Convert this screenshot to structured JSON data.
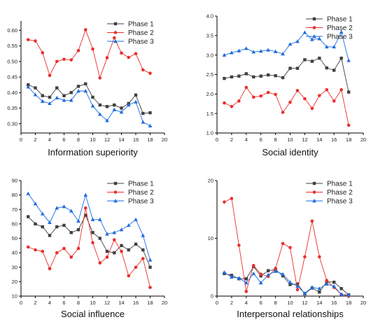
{
  "colors": {
    "phase1": "#404040",
    "phase2": "#e8302c",
    "phase3": "#1e6be0"
  },
  "chart_data": [
    {
      "type": "line",
      "title": "Information superiority",
      "x": [
        1,
        2,
        3,
        4,
        5,
        6,
        7,
        8,
        9,
        10,
        11,
        12,
        13,
        14,
        15,
        16,
        17,
        18
      ],
      "xlim": [
        0,
        20
      ],
      "xticks": [
        0,
        2,
        4,
        6,
        8,
        10,
        12,
        14,
        16,
        18,
        20
      ],
      "ylim": [
        0.27,
        0.63
      ],
      "yticks": [
        0.3,
        0.35,
        0.4,
        0.45,
        0.5,
        0.55,
        0.6
      ],
      "ytick_labels": [
        "0.30",
        "0.35",
        "0.40",
        "0.45",
        "0.50",
        "0.55",
        "0.60"
      ],
      "legend": "top-right",
      "series": [
        {
          "name": "Phase 1",
          "values": [
            0.425,
            0.415,
            0.39,
            0.385,
            0.415,
            0.39,
            0.4,
            0.42,
            0.428,
            0.385,
            0.36,
            0.355,
            0.36,
            0.35,
            0.365,
            0.392,
            0.333,
            0.335
          ]
        },
        {
          "name": "Phase 2",
          "values": [
            0.57,
            0.566,
            0.528,
            0.455,
            0.5,
            0.507,
            0.505,
            0.535,
            0.602,
            0.54,
            0.447,
            0.512,
            0.576,
            0.527,
            0.513,
            0.525,
            0.473,
            0.462
          ]
        },
        {
          "name": "Phase 3",
          "values": [
            0.418,
            0.393,
            0.372,
            0.365,
            0.383,
            0.375,
            0.375,
            0.405,
            0.405,
            0.357,
            0.33,
            0.31,
            0.345,
            0.337,
            0.36,
            0.37,
            0.305,
            0.293
          ]
        }
      ]
    },
    {
      "type": "line",
      "title": "Social identity",
      "x": [
        1,
        2,
        3,
        4,
        5,
        6,
        7,
        8,
        9,
        10,
        11,
        12,
        13,
        14,
        15,
        16,
        17,
        18
      ],
      "xlim": [
        0,
        20
      ],
      "xticks": [
        0,
        2,
        4,
        6,
        8,
        10,
        12,
        14,
        16,
        18,
        20
      ],
      "ylim": [
        1.0,
        4.0
      ],
      "yticks": [
        1.0,
        1.5,
        2.0,
        2.5,
        3.0,
        3.5,
        4.0
      ],
      "ytick_labels": [
        "1.0",
        "1.5",
        "2.0",
        "2.5",
        "3.0",
        "3.5",
        "4.0"
      ],
      "legend": "top-right",
      "series": [
        {
          "name": "Phase 1",
          "values": [
            2.4,
            2.44,
            2.46,
            2.52,
            2.44,
            2.46,
            2.49,
            2.47,
            2.42,
            2.66,
            2.66,
            2.88,
            2.84,
            2.92,
            2.67,
            2.61,
            2.92,
            2.05
          ]
        },
        {
          "name": "Phase 2",
          "values": [
            1.77,
            1.68,
            1.82,
            2.17,
            1.92,
            1.95,
            2.04,
            1.99,
            1.53,
            1.79,
            2.09,
            1.88,
            1.63,
            1.96,
            2.11,
            1.82,
            2.11,
            1.2
          ]
        },
        {
          "name": "Phase 3",
          "values": [
            3.0,
            3.06,
            3.11,
            3.17,
            3.08,
            3.1,
            3.13,
            3.09,
            3.03,
            3.28,
            3.35,
            3.58,
            3.4,
            3.42,
            3.21,
            3.21,
            3.59,
            2.86
          ]
        }
      ]
    },
    {
      "type": "line",
      "title": "Social influence",
      "x": [
        1,
        2,
        3,
        4,
        5,
        6,
        7,
        8,
        9,
        10,
        11,
        12,
        13,
        14,
        15,
        16,
        17,
        18
      ],
      "xlim": [
        0,
        20
      ],
      "xticks": [
        0,
        2,
        4,
        6,
        8,
        10,
        12,
        14,
        16,
        18,
        20
      ],
      "ylim": [
        10,
        90
      ],
      "yticks": [
        10,
        20,
        30,
        40,
        50,
        60,
        70,
        80,
        90
      ],
      "ytick_labels": [
        "10",
        "20",
        "30",
        "40",
        "50",
        "60",
        "70",
        "80",
        "90"
      ],
      "legend": "top-right",
      "series": [
        {
          "name": "Phase 1",
          "values": [
            65,
            60,
            58,
            52,
            58,
            59,
            54,
            56,
            66,
            54,
            50,
            41,
            40,
            45,
            42,
            46,
            42,
            30
          ]
        },
        {
          "name": "Phase 2",
          "values": [
            44,
            42,
            41,
            29,
            40,
            43,
            37,
            43,
            71,
            47,
            33,
            37,
            49,
            41,
            24,
            30,
            36,
            16
          ]
        },
        {
          "name": "Phase 3",
          "values": [
            81,
            74,
            67,
            61,
            71,
            72,
            69,
            62,
            80,
            63,
            63,
            53,
            54,
            56,
            59,
            63,
            52,
            35
          ]
        }
      ]
    },
    {
      "type": "line",
      "title": "Interpersonal relationships",
      "x": [
        1,
        2,
        3,
        4,
        5,
        6,
        7,
        8,
        9,
        10,
        11,
        12,
        13,
        14,
        15,
        16,
        17,
        18
      ],
      "xlim": [
        0,
        20
      ],
      "xticks": [
        0,
        2,
        4,
        6,
        8,
        10,
        12,
        14,
        16,
        18,
        20
      ],
      "ylim": [
        0,
        20
      ],
      "yticks": [
        0,
        10,
        20
      ],
      "ytick_labels": [
        "0",
        "10",
        "20"
      ],
      "legend": "top-right",
      "series": [
        {
          "name": "Phase 1",
          "values": [
            3.9,
            3.6,
            3.0,
            3.0,
            5.1,
            3.5,
            4.4,
            4.6,
            3.5,
            2.0,
            2.1,
            0.4,
            1.4,
            0.7,
            2.5,
            2.4,
            1.3,
            0.2
          ]
        },
        {
          "name": "Phase 2",
          "values": [
            16.3,
            16.9,
            8.8,
            0.8,
            5.3,
            3.8,
            3.4,
            4.8,
            9.1,
            8.4,
            1.1,
            6.8,
            13.0,
            6.8,
            2.7,
            1.5,
            0.3,
            0.0
          ]
        },
        {
          "name": "Phase 3",
          "values": [
            4.1,
            3.3,
            3.1,
            2.3,
            3.9,
            2.3,
            3.7,
            4.3,
            3.8,
            2.4,
            1.7,
            0.5,
            1.5,
            1.3,
            2.1,
            1.7,
            0.3,
            0.2
          ]
        }
      ]
    }
  ]
}
